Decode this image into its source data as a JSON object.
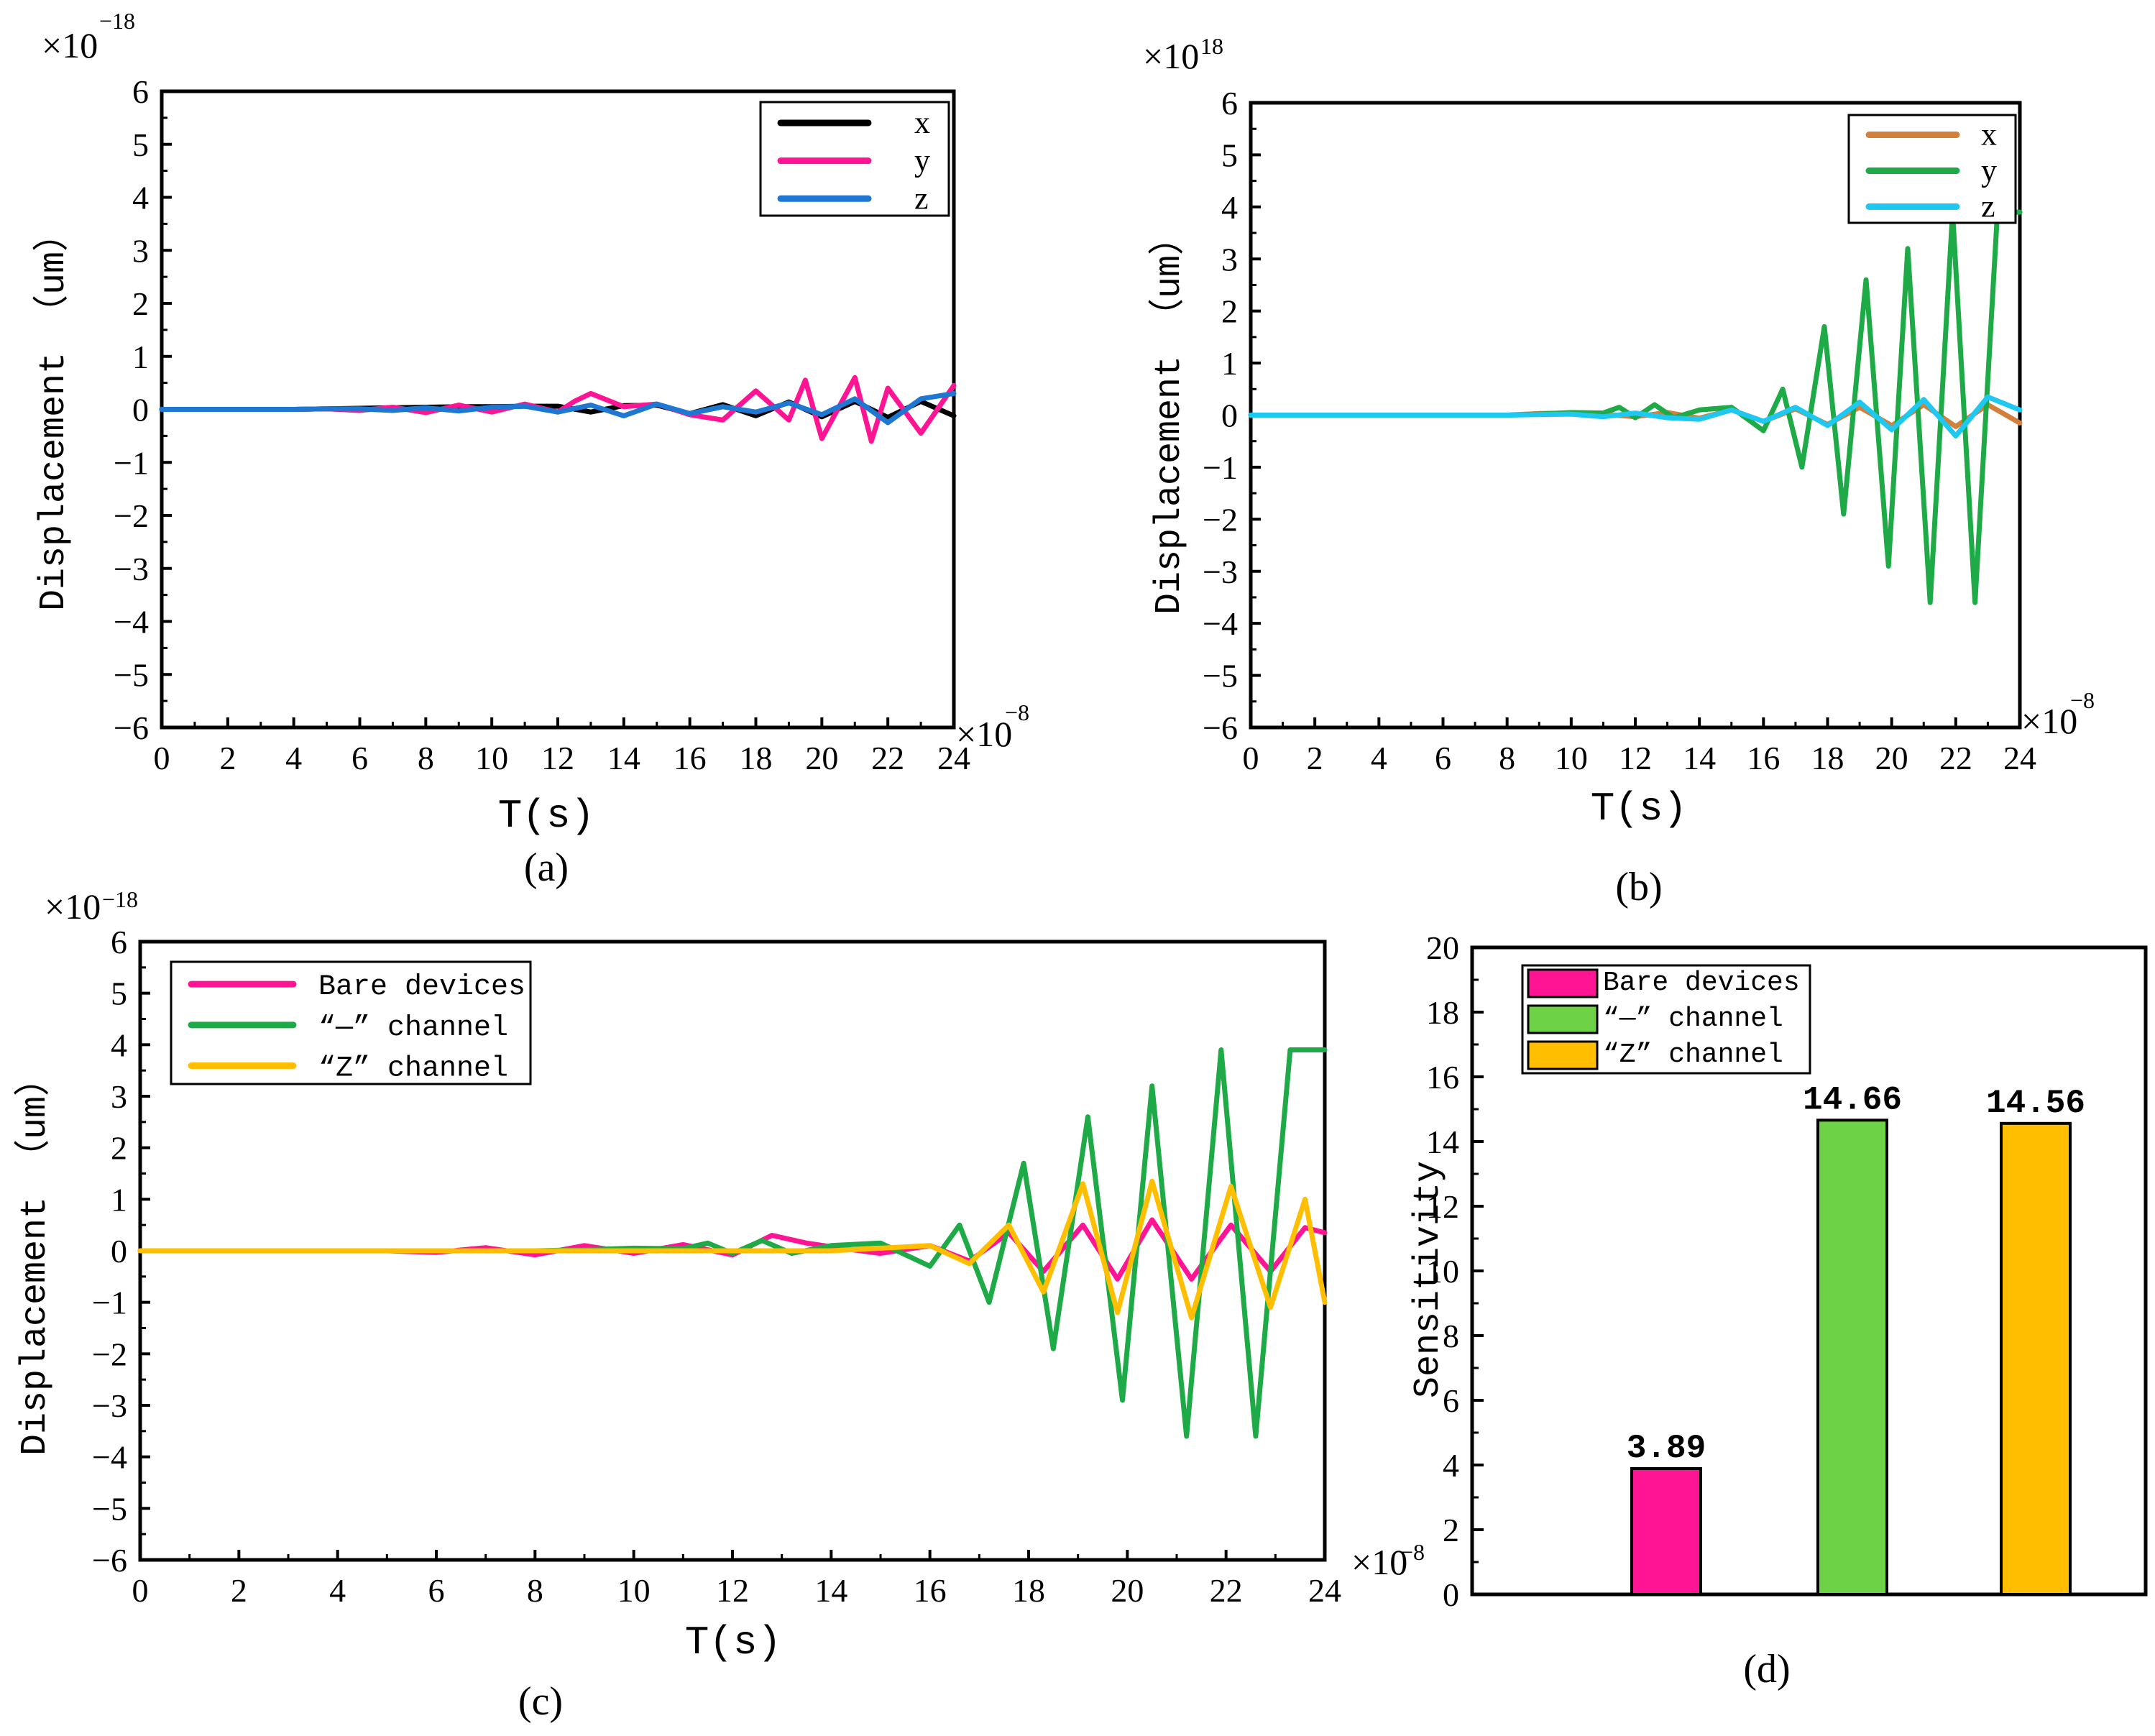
{
  "panels": [
    {
      "id": "a",
      "caption": "(a)",
      "title": "",
      "multiplier_y": "×10",
      "multiplier_y_exp": "−18",
      "multiplier_x": "×10",
      "multiplier_x_exp": "−8",
      "xlabel": "T(s)",
      "ylabel": "Displacement （um）"
    },
    {
      "id": "b",
      "caption": "(b)",
      "title": "",
      "multiplier_y": "×10",
      "multiplier_y_exp": "18",
      "multiplier_x": "×10",
      "multiplier_x_exp": "−8",
      "xlabel": "T(s)",
      "ylabel": "Displacement （um）"
    },
    {
      "id": "c",
      "caption": "(c)",
      "title": "",
      "multiplier_y": "×10",
      "multiplier_y_exp": "−18",
      "multiplier_x": "×10",
      "multiplier_x_exp": "−8",
      "xlabel": "T(s)",
      "ylabel": "Displacement （um）"
    },
    {
      "id": "d",
      "caption": "(d)",
      "title": "",
      "xlabel": "",
      "ylabel": "Sensitivity"
    }
  ],
  "chart_data": [
    {
      "type": "line",
      "panel": "a",
      "xlim": [
        0,
        24
      ],
      "ylim": [
        -6,
        6
      ],
      "xticks": [
        0,
        2,
        4,
        6,
        8,
        10,
        12,
        14,
        16,
        18,
        20,
        22,
        24
      ],
      "yticks": [
        -6,
        -5,
        -4,
        -3,
        -2,
        -1,
        0,
        1,
        2,
        3,
        4,
        5,
        6
      ],
      "legend_position": "top-right",
      "series": [
        {
          "name": "x",
          "color": "#000000",
          "x": [
            0,
            4,
            5,
            6,
            7,
            8,
            9,
            10,
            11,
            12,
            13,
            14,
            15,
            16,
            17,
            18,
            19,
            20,
            21,
            22,
            23,
            24
          ],
          "y": [
            0,
            0,
            0.01,
            0.02,
            0.03,
            0.04,
            0.05,
            0.05,
            0.06,
            0.06,
            -0.05,
            0.07,
            0.08,
            -0.08,
            0.09,
            -0.12,
            0.14,
            -0.14,
            0.15,
            -0.15,
            0.15,
            -0.12
          ]
        },
        {
          "name": "y",
          "color": "#ff1493",
          "x": [
            0,
            4,
            5,
            6,
            7,
            8,
            9,
            10,
            11,
            12,
            12.5,
            13,
            14,
            15,
            16,
            17,
            18,
            19,
            19.5,
            20,
            21,
            21.5,
            22,
            23,
            24
          ],
          "y": [
            0,
            0,
            0.01,
            -0.02,
            0.04,
            -0.06,
            0.08,
            -0.05,
            0.1,
            -0.05,
            0.15,
            0.3,
            0.05,
            0.1,
            -0.1,
            -0.2,
            0.35,
            -0.2,
            0.55,
            -0.55,
            0.6,
            -0.6,
            0.4,
            -0.45,
            0.45
          ]
        },
        {
          "name": "z",
          "color": "#1e78d2",
          "x": [
            0,
            4,
            5,
            6,
            7,
            8,
            9,
            10,
            11,
            12,
            13,
            14,
            15,
            16,
            17,
            18,
            19,
            20,
            21,
            22,
            23,
            24
          ],
          "y": [
            0,
            0,
            0.01,
            0.01,
            -0.02,
            0.03,
            -0.03,
            0.04,
            0.06,
            -0.05,
            0.08,
            -0.12,
            0.1,
            -0.08,
            0.05,
            -0.05,
            0.12,
            -0.1,
            0.2,
            -0.25,
            0.2,
            0.3
          ]
        }
      ]
    },
    {
      "type": "line",
      "panel": "b",
      "xlim": [
        0,
        24
      ],
      "ylim": [
        -6,
        6
      ],
      "xticks": [
        0,
        2,
        4,
        6,
        8,
        10,
        12,
        14,
        16,
        18,
        20,
        22,
        24
      ],
      "yticks": [
        -6,
        -5,
        -4,
        -3,
        -2,
        -1,
        0,
        1,
        2,
        3,
        4,
        5,
        6
      ],
      "legend_position": "top-right",
      "series": [
        {
          "name": "x",
          "color": "#d2803c",
          "x": [
            0,
            8,
            9,
            10,
            11,
            12,
            13,
            14,
            15,
            16,
            17,
            18,
            19,
            20,
            21,
            22,
            23,
            24
          ],
          "y": [
            0,
            0,
            0.03,
            0.04,
            0.02,
            -0.03,
            0.05,
            -0.06,
            0.1,
            -0.12,
            0.12,
            -0.18,
            0.15,
            -0.2,
            0.2,
            -0.22,
            0.2,
            -0.15
          ]
        },
        {
          "name": "y",
          "color": "#1eaa46",
          "x": [
            0,
            8,
            9,
            10,
            11,
            11.5,
            12,
            12.6,
            13.2,
            14,
            15,
            16,
            16.6,
            17.2,
            17.9,
            18.5,
            19.2,
            19.9,
            20.5,
            21.2,
            21.9,
            22.6,
            23.3,
            24
          ],
          "y": [
            0,
            0,
            0.02,
            0.05,
            0.04,
            0.15,
            -0.05,
            0.2,
            -0.05,
            0.1,
            0.15,
            -0.3,
            0.5,
            -1.0,
            1.7,
            -1.9,
            2.6,
            -2.9,
            3.2,
            -3.6,
            3.9,
            -3.6,
            3.9,
            3.9
          ]
        },
        {
          "name": "z",
          "color": "#1ec8f0",
          "x": [
            0,
            8,
            9,
            10,
            11,
            12,
            13,
            14,
            15,
            16,
            17,
            18,
            19,
            20,
            21,
            22,
            23,
            24
          ],
          "y": [
            0,
            0,
            0.01,
            0.02,
            -0.03,
            0.04,
            -0.05,
            -0.08,
            0.1,
            -0.12,
            0.15,
            -0.2,
            0.25,
            -0.28,
            0.3,
            -0.4,
            0.35,
            0.1
          ]
        }
      ]
    },
    {
      "type": "line",
      "panel": "c",
      "xlim": [
        0,
        24
      ],
      "ylim": [
        -6,
        6
      ],
      "xticks": [
        0,
        2,
        4,
        6,
        8,
        10,
        12,
        14,
        16,
        18,
        20,
        22,
        24
      ],
      "yticks": [
        -6,
        -5,
        -4,
        -3,
        -2,
        -1,
        0,
        1,
        2,
        3,
        4,
        5,
        6
      ],
      "legend_position": "top-left",
      "series": [
        {
          "name": "Bare devices",
          "color": "#ff1493",
          "x": [
            0,
            5,
            6,
            7,
            8,
            9,
            10,
            11,
            12,
            12.8,
            13.5,
            14.2,
            15,
            16,
            16.8,
            17.6,
            18.3,
            19.1,
            19.8,
            20.5,
            21.3,
            22.1,
            22.9,
            23.6,
            24
          ],
          "y": [
            0,
            0,
            -0.03,
            0.06,
            -0.08,
            0.1,
            -0.05,
            0.12,
            -0.08,
            0.3,
            0.15,
            0.05,
            -0.05,
            0.1,
            -0.2,
            0.35,
            -0.4,
            0.5,
            -0.55,
            0.6,
            -0.55,
            0.5,
            -0.4,
            0.45,
            0.35
          ]
        },
        {
          "name": "“—” channel",
          "color": "#1eaa46",
          "x": [
            0,
            8,
            9,
            10,
            11,
            11.5,
            12,
            12.6,
            13.2,
            14,
            15,
            16,
            16.6,
            17.2,
            17.9,
            18.5,
            19.2,
            19.9,
            20.5,
            21.2,
            21.9,
            22.6,
            23.3,
            24
          ],
          "y": [
            0,
            0,
            0.02,
            0.05,
            0.04,
            0.15,
            -0.05,
            0.2,
            -0.05,
            0.1,
            0.15,
            -0.3,
            0.5,
            -1.0,
            1.7,
            -1.9,
            2.6,
            -2.9,
            3.2,
            -3.6,
            3.9,
            -3.6,
            3.9,
            3.9
          ]
        },
        {
          "name": "“Z” channel",
          "color": "#ffbe00",
          "x": [
            0,
            14,
            15,
            16,
            16.8,
            17.6,
            18.3,
            19.1,
            19.8,
            20.5,
            21.3,
            22.1,
            22.9,
            23.6,
            24
          ],
          "y": [
            0,
            0,
            0.05,
            0.1,
            -0.25,
            0.5,
            -0.8,
            1.3,
            -1.2,
            1.35,
            -1.3,
            1.25,
            -1.1,
            1.0,
            -1.0
          ]
        }
      ]
    },
    {
      "type": "bar",
      "panel": "d",
      "ylim": [
        0,
        20
      ],
      "yticks": [
        0,
        2,
        4,
        6,
        8,
        10,
        12,
        14,
        16,
        18,
        20
      ],
      "legend_position": "top-left",
      "categories": [
        "Bare devices",
        "“—” channel",
        "“Z” channel"
      ],
      "values": [
        3.89,
        14.66,
        14.56
      ],
      "value_labels": [
        "3.89",
        "14.66",
        "14.56"
      ],
      "colors": [
        "#ff1493",
        "#6ed246",
        "#ffbe00"
      ]
    }
  ]
}
